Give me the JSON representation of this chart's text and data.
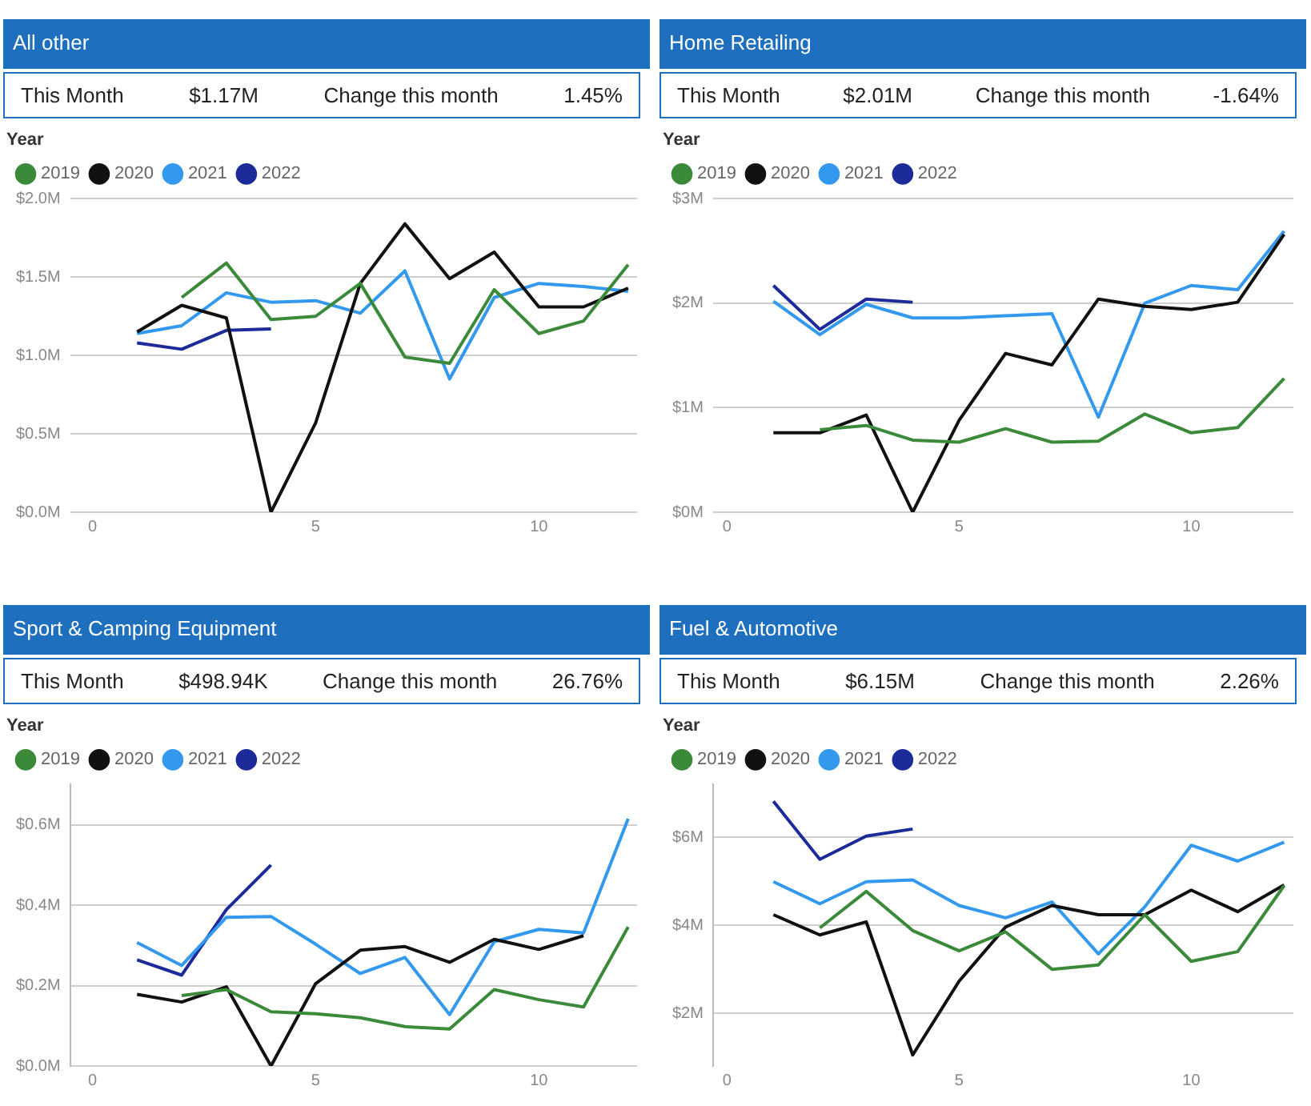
{
  "chart_data": [
    {
      "type": "line",
      "title": "All other",
      "annotations": [
        "This Month",
        "$1.17M",
        "Change this month",
        "1.45%"
      ],
      "legend_title": "Year",
      "legend": "top left",
      "grid": "y",
      "marker": "none",
      "line_style": "solid",
      "x": [
        1,
        2,
        3,
        4,
        5,
        6,
        7,
        8,
        9,
        10,
        11,
        12
      ],
      "xlim": [
        -0.5,
        12.2
      ],
      "xticks": [
        0,
        5,
        10
      ],
      "ylim": [
        0,
        2
      ],
      "yticks": [
        {
          "value": 0,
          "label": "$0.0M"
        },
        {
          "value": 0.5,
          "label": "$0.5M"
        },
        {
          "value": 1,
          "label": "$1.0M"
        },
        {
          "value": 1.5,
          "label": "$1.5M"
        },
        {
          "value": 2,
          "label": "$2.0M"
        }
      ],
      "series": [
        {
          "name": "2019",
          "color": "#3a8a3a",
          "values": [
            null,
            1.37,
            1.59,
            1.23,
            1.25,
            1.46,
            0.99,
            0.95,
            1.42,
            1.14,
            1.22,
            1.58
          ]
        },
        {
          "name": "2020",
          "color": "#111111",
          "values": [
            1.15,
            1.32,
            1.24,
            0.0,
            0.57,
            1.46,
            1.84,
            1.49,
            1.66,
            1.31,
            1.31,
            1.43
          ]
        },
        {
          "name": "2021",
          "color": "#3399ee",
          "values": [
            1.14,
            1.19,
            1.4,
            1.34,
            1.35,
            1.27,
            1.54,
            0.85,
            1.37,
            1.46,
            1.44,
            1.41
          ]
        },
        {
          "name": "2022",
          "color": "#1c2a9a",
          "values": [
            1.08,
            1.04,
            1.16,
            1.17,
            null,
            null,
            null,
            null,
            null,
            null,
            null,
            null
          ]
        }
      ]
    },
    {
      "type": "line",
      "title": "Home Retailing",
      "annotations": [
        "This Month",
        "$2.01M",
        "Change this month",
        "-1.64%"
      ],
      "legend_title": "Year",
      "legend": "top left",
      "grid": "y",
      "marker": "none",
      "line_style": "solid",
      "x": [
        1,
        2,
        3,
        4,
        5,
        6,
        7,
        8,
        9,
        10,
        11,
        12
      ],
      "xlim": [
        -0.3,
        12.2
      ],
      "xticks": [
        0,
        5,
        10
      ],
      "ylim": [
        0,
        3
      ],
      "yticks": [
        {
          "value": 0,
          "label": "$0M"
        },
        {
          "value": 1,
          "label": "$1M"
        },
        {
          "value": 2,
          "label": "$2M"
        },
        {
          "value": 3,
          "label": "$3M"
        }
      ],
      "series": [
        {
          "name": "2019",
          "color": "#3a8a3a",
          "values": [
            null,
            0.79,
            0.83,
            0.69,
            0.67,
            0.8,
            0.67,
            0.68,
            0.94,
            0.76,
            0.81,
            1.28
          ]
        },
        {
          "name": "2020",
          "color": "#111111",
          "values": [
            0.76,
            0.76,
            0.93,
            0.0,
            0.88,
            1.52,
            1.41,
            2.04,
            1.97,
            1.94,
            2.01,
            2.66
          ]
        },
        {
          "name": "2021",
          "color": "#3399ee",
          "values": [
            2.02,
            1.7,
            1.99,
            1.86,
            1.86,
            1.88,
            1.9,
            0.91,
            2.0,
            2.17,
            2.13,
            2.69
          ]
        },
        {
          "name": "2022",
          "color": "#1c2a9a",
          "values": [
            2.17,
            1.75,
            2.04,
            2.01,
            null,
            null,
            null,
            null,
            null,
            null,
            null,
            null
          ]
        }
      ]
    },
    {
      "type": "line",
      "title": "Sport & Camping Equipment",
      "annotations": [
        "This Month",
        "$498.94K",
        "Change this month",
        "26.76%"
      ],
      "legend_title": "Year",
      "legend": "top left",
      "grid": "y",
      "marker": "none",
      "line_style": "solid",
      "x": [
        1,
        2,
        3,
        4,
        5,
        6,
        7,
        8,
        9,
        10,
        11,
        12
      ],
      "xlim": [
        -0.5,
        12.2
      ],
      "xticks": [
        0,
        5,
        10
      ],
      "ylim": [
        0,
        0.7
      ],
      "yticks": [
        {
          "value": 0,
          "label": "$0.0M"
        },
        {
          "value": 0.2,
          "label": "$0.2M"
        },
        {
          "value": 0.4,
          "label": "$0.4M"
        },
        {
          "value": 0.6,
          "label": "$0.6M"
        }
      ],
      "series": [
        {
          "name": "2019",
          "color": "#3a8a3a",
          "values": [
            null,
            0.175,
            0.19,
            0.135,
            0.13,
            0.12,
            0.098,
            0.092,
            0.19,
            0.165,
            0.147,
            0.346
          ]
        },
        {
          "name": "2020",
          "color": "#111111",
          "values": [
            0.178,
            0.159,
            0.197,
            0.0,
            0.205,
            0.288,
            0.297,
            0.258,
            0.315,
            0.29,
            0.324,
            null
          ]
        },
        {
          "name": "2021",
          "color": "#3399ee",
          "values": [
            0.307,
            0.25,
            0.37,
            0.372,
            0.303,
            0.23,
            0.27,
            0.128,
            0.309,
            0.34,
            0.331,
            0.615
          ]
        },
        {
          "name": "2022",
          "color": "#1c2a9a",
          "values": [
            0.264,
            0.226,
            0.389,
            0.5,
            null,
            null,
            null,
            null,
            null,
            null,
            null,
            null
          ]
        }
      ]
    },
    {
      "type": "line",
      "title": "Fuel & Automotive",
      "annotations": [
        "This Month",
        "$6.15M",
        "Change this month",
        "2.26%"
      ],
      "legend_title": "Year",
      "legend": "top left",
      "grid": "y",
      "marker": "none",
      "line_style": "solid",
      "x": [
        1,
        2,
        3,
        4,
        5,
        6,
        7,
        8,
        9,
        10,
        11,
        12
      ],
      "xlim": [
        -0.3,
        12.2
      ],
      "xticks": [
        0,
        5,
        10
      ],
      "ylim": [
        0.8,
        7.2
      ],
      "yticks": [
        {
          "value": 2,
          "label": "$2M"
        },
        {
          "value": 4,
          "label": "$4M"
        },
        {
          "value": 6,
          "label": "$6M"
        }
      ],
      "series": [
        {
          "name": "2019",
          "color": "#3a8a3a",
          "values": [
            null,
            3.94,
            4.77,
            3.88,
            3.42,
            3.85,
            3.0,
            3.1,
            4.24,
            3.18,
            3.4,
            4.9
          ]
        },
        {
          "name": "2020",
          "color": "#111111",
          "values": [
            4.24,
            3.78,
            4.08,
            1.05,
            2.73,
            3.96,
            4.45,
            4.24,
            4.24,
            4.8,
            4.31,
            4.92
          ]
        },
        {
          "name": "2021",
          "color": "#3399ee",
          "values": [
            4.99,
            4.49,
            4.99,
            5.03,
            4.45,
            4.17,
            4.53,
            3.35,
            4.42,
            5.82,
            5.46,
            5.89
          ]
        },
        {
          "name": "2022",
          "color": "#1c2a9a",
          "values": [
            6.82,
            5.5,
            6.03,
            6.19,
            null,
            null,
            null,
            null,
            null,
            null,
            null,
            null
          ]
        }
      ]
    }
  ]
}
